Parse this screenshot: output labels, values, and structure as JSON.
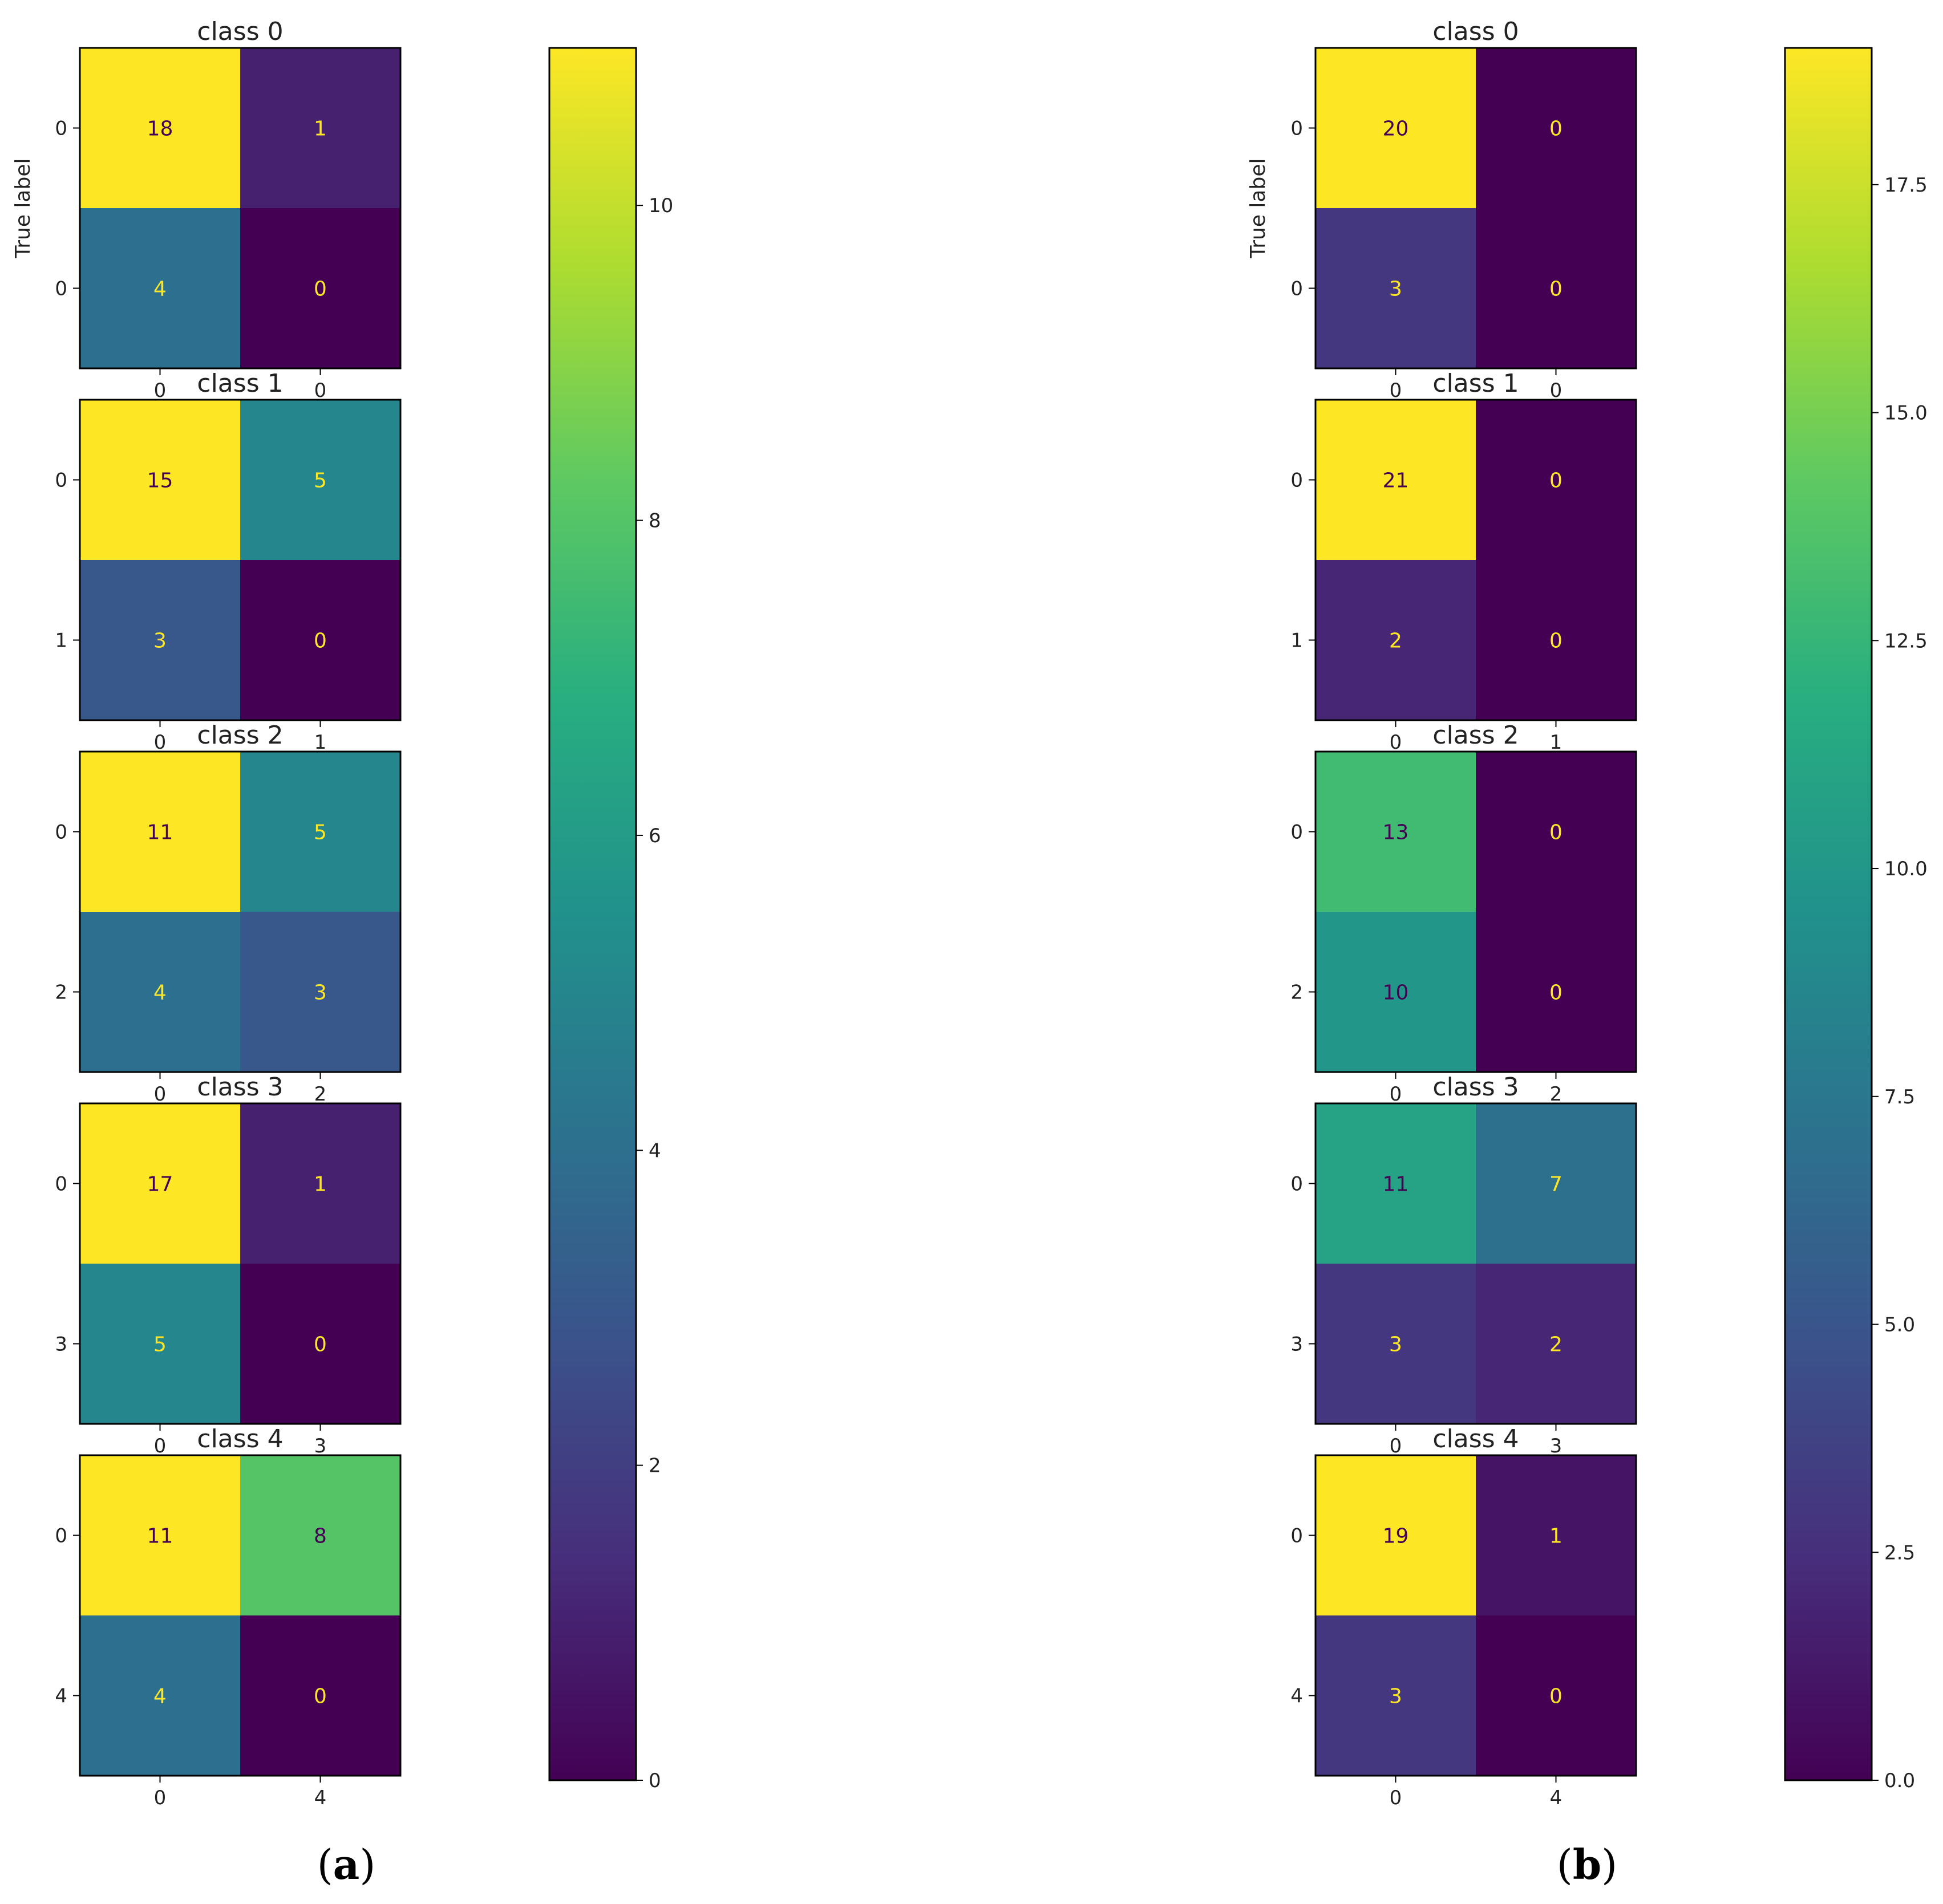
{
  "chart_data": [
    {
      "panel": "a",
      "type": "heatmap",
      "colormap": "viridis",
      "ylabel": "True label",
      "colorbar": {
        "min": 0,
        "max": 11,
        "ticks": [
          "0",
          "2",
          "4",
          "6",
          "8",
          "10"
        ],
        "tick_values": [
          0,
          2,
          4,
          6,
          8,
          10
        ]
      },
      "subplots": [
        {
          "title": "class 0",
          "row_labels": [
            "0",
            "0"
          ],
          "col_labels": [
            "0",
            "0"
          ],
          "matrix": [
            [
              18,
              1
            ],
            [
              4,
              0
            ]
          ]
        },
        {
          "title": "class 1",
          "row_labels": [
            "0",
            "1"
          ],
          "col_labels": [
            "0",
            "1"
          ],
          "matrix": [
            [
              15,
              5
            ],
            [
              3,
              0
            ]
          ]
        },
        {
          "title": "class 2",
          "row_labels": [
            "0",
            "2"
          ],
          "col_labels": [
            "0",
            "2"
          ],
          "matrix": [
            [
              11,
              5
            ],
            [
              4,
              3
            ]
          ]
        },
        {
          "title": "class 3",
          "row_labels": [
            "0",
            "3"
          ],
          "col_labels": [
            "0",
            "3"
          ],
          "matrix": [
            [
              17,
              1
            ],
            [
              5,
              0
            ]
          ]
        },
        {
          "title": "class 4",
          "row_labels": [
            "0",
            "4"
          ],
          "col_labels": [
            "0",
            "4"
          ],
          "matrix": [
            [
              11,
              8
            ],
            [
              4,
              0
            ]
          ]
        }
      ]
    },
    {
      "panel": "b",
      "type": "heatmap",
      "colormap": "viridis",
      "ylabel": "True label",
      "colorbar": {
        "min": 0,
        "max": 19,
        "ticks": [
          "0.0",
          "2.5",
          "5.0",
          "7.5",
          "10.0",
          "12.5",
          "15.0",
          "17.5"
        ],
        "tick_values": [
          0,
          2.5,
          5,
          7.5,
          10,
          12.5,
          15,
          17.5
        ]
      },
      "subplots": [
        {
          "title": "class 0",
          "row_labels": [
            "0",
            "0"
          ],
          "col_labels": [
            "0",
            "0"
          ],
          "matrix": [
            [
              20,
              0
            ],
            [
              3,
              0
            ]
          ]
        },
        {
          "title": "class 1",
          "row_labels": [
            "0",
            "1"
          ],
          "col_labels": [
            "0",
            "1"
          ],
          "matrix": [
            [
              21,
              0
            ],
            [
              2,
              0
            ]
          ]
        },
        {
          "title": "class 2",
          "row_labels": [
            "0",
            "2"
          ],
          "col_labels": [
            "0",
            "2"
          ],
          "matrix": [
            [
              13,
              0
            ],
            [
              10,
              0
            ]
          ]
        },
        {
          "title": "class 3",
          "row_labels": [
            "0",
            "3"
          ],
          "col_labels": [
            "0",
            "3"
          ],
          "matrix": [
            [
              11,
              7
            ],
            [
              3,
              2
            ]
          ]
        },
        {
          "title": "class 4",
          "row_labels": [
            "0",
            "4"
          ],
          "col_labels": [
            "0",
            "4"
          ],
          "matrix": [
            [
              19,
              1
            ],
            [
              3,
              0
            ]
          ]
        }
      ]
    }
  ],
  "panel_labels": {
    "a": {
      "open": "(",
      "letter": "a",
      "close": ")"
    },
    "b": {
      "open": "(",
      "letter": "b",
      "close": ")"
    }
  }
}
